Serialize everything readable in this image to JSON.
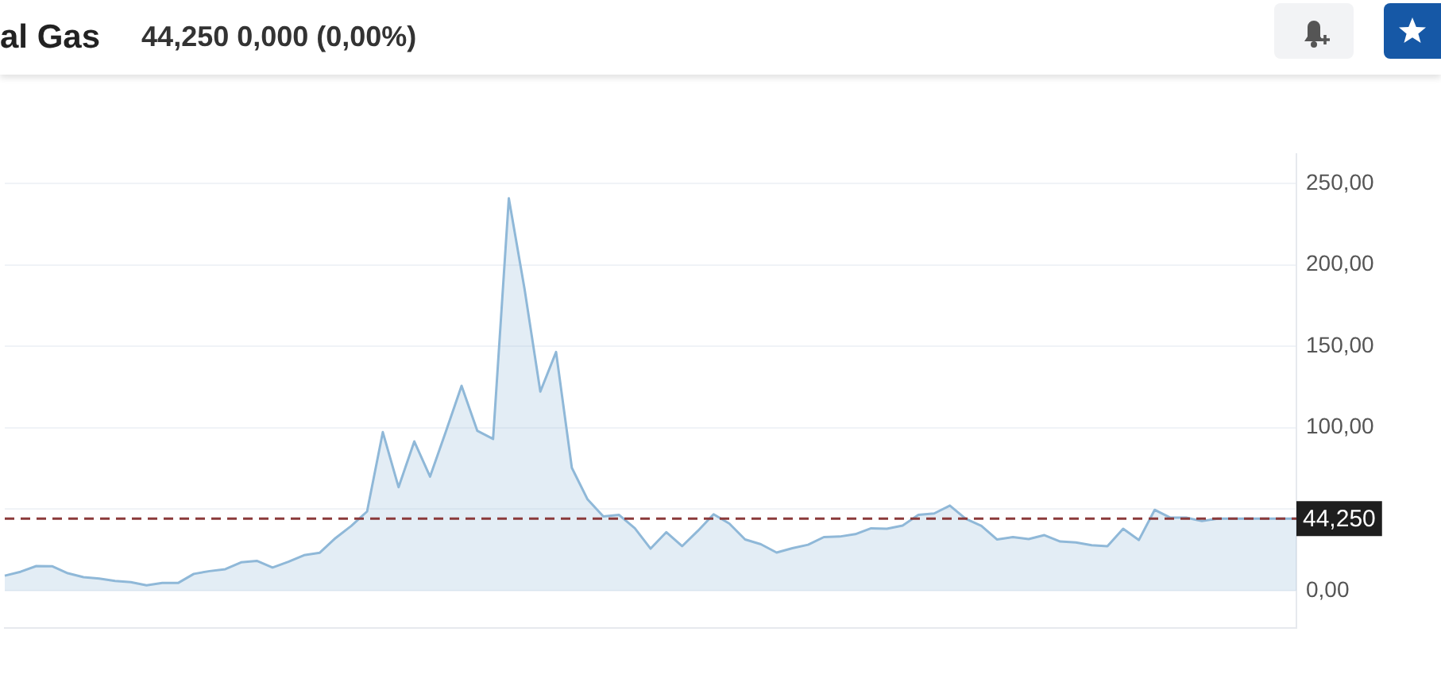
{
  "chart_data": {
    "type": "area",
    "title": "al Gas",
    "subtitle": "44,250 0,000 (0,00%)",
    "categories": [
      null,
      null,
      null,
      null,
      null,
      null,
      null,
      null,
      null,
      null,
      null,
      null,
      null,
      null,
      null,
      null,
      null,
      null,
      null,
      null,
      null,
      null,
      null,
      null,
      null,
      null,
      null,
      null,
      null,
      null,
      null,
      null,
      null,
      null,
      null,
      null,
      null,
      null,
      null,
      null,
      null,
      null,
      null,
      null,
      null,
      null,
      null,
      null,
      null,
      null,
      null,
      null,
      null,
      null,
      null,
      null,
      null,
      null,
      null,
      null,
      null,
      null,
      null,
      null,
      null,
      null,
      null,
      null,
      null,
      null,
      null,
      null,
      null,
      null,
      null,
      null,
      null,
      null,
      null,
      null,
      null,
      null,
      null
    ],
    "series": [
      {
        "color": "#8fb8d8",
        "values": [
          9.2,
          11.6,
          15.1,
          15,
          10.7,
          8.3,
          7.4,
          6,
          5.2,
          3.3,
          4.7,
          4.7,
          10.3,
          12,
          13.2,
          17.4,
          18.3,
          14.2,
          17.7,
          21.8,
          23.3,
          32.3,
          39.8,
          48.6,
          97.3,
          63.5,
          91.6,
          70,
          97.6,
          125.7,
          98.1,
          93.1,
          240.8,
          185,
          122.2,
          146.5,
          75.4,
          56,
          45.6,
          46.5,
          38.3,
          25.8,
          35.9,
          27.3,
          36.7,
          46.9,
          41.2,
          31.4,
          28.5,
          23.4,
          26.1,
          28.2,
          32.9,
          33.2,
          34.7,
          38.3,
          38,
          40,
          46.5,
          47.4,
          52.2,
          44.2,
          39.8,
          31.4,
          32.9,
          31.7,
          34.1,
          30.2,
          29.6,
          27.9,
          27.3,
          38,
          31.1,
          49.6,
          44.8,
          44.8,
          42.7,
          44.25,
          44.25,
          44.25,
          44.25,
          44.25,
          44.25
        ]
      }
    ],
    "ylim": [
      -23,
      268
    ],
    "yticks": [
      {
        "value": 0,
        "label": "0,00"
      },
      {
        "value": 50,
        "label": null
      },
      {
        "value": 100,
        "label": "100,00"
      },
      {
        "value": 150,
        "label": "150,00"
      },
      {
        "value": 200,
        "label": "200,00"
      },
      {
        "value": 250,
        "label": "250,00"
      }
    ],
    "grid": "y",
    "legend": false,
    "marker": "none",
    "line_style": "solid",
    "ref_lines": [
      {
        "axis": "y",
        "value": 44.25,
        "label": "44,250",
        "color": "#8b3a3a",
        "line_style": "dashed"
      }
    ]
  }
}
